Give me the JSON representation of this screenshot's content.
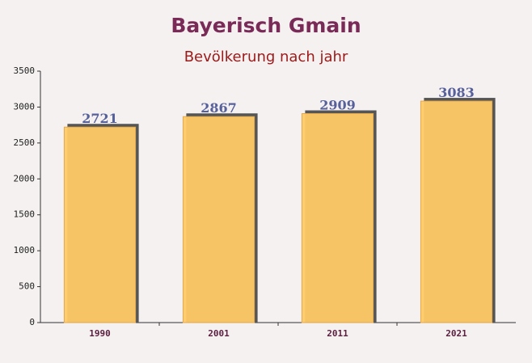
{
  "chart_data": {
    "type": "bar",
    "title": "Bayerisch Gmain",
    "subtitle": "Bevölkerung nach jahr",
    "categories": [
      "1990",
      "2001",
      "2011",
      "2021"
    ],
    "values": [
      2721,
      2867,
      2909,
      3083
    ],
    "color": "#ffc966",
    "ylim": [
      0,
      3500
    ],
    "yticks": [
      0,
      500,
      1000,
      1500,
      2000,
      2500,
      3000,
      3500
    ]
  }
}
